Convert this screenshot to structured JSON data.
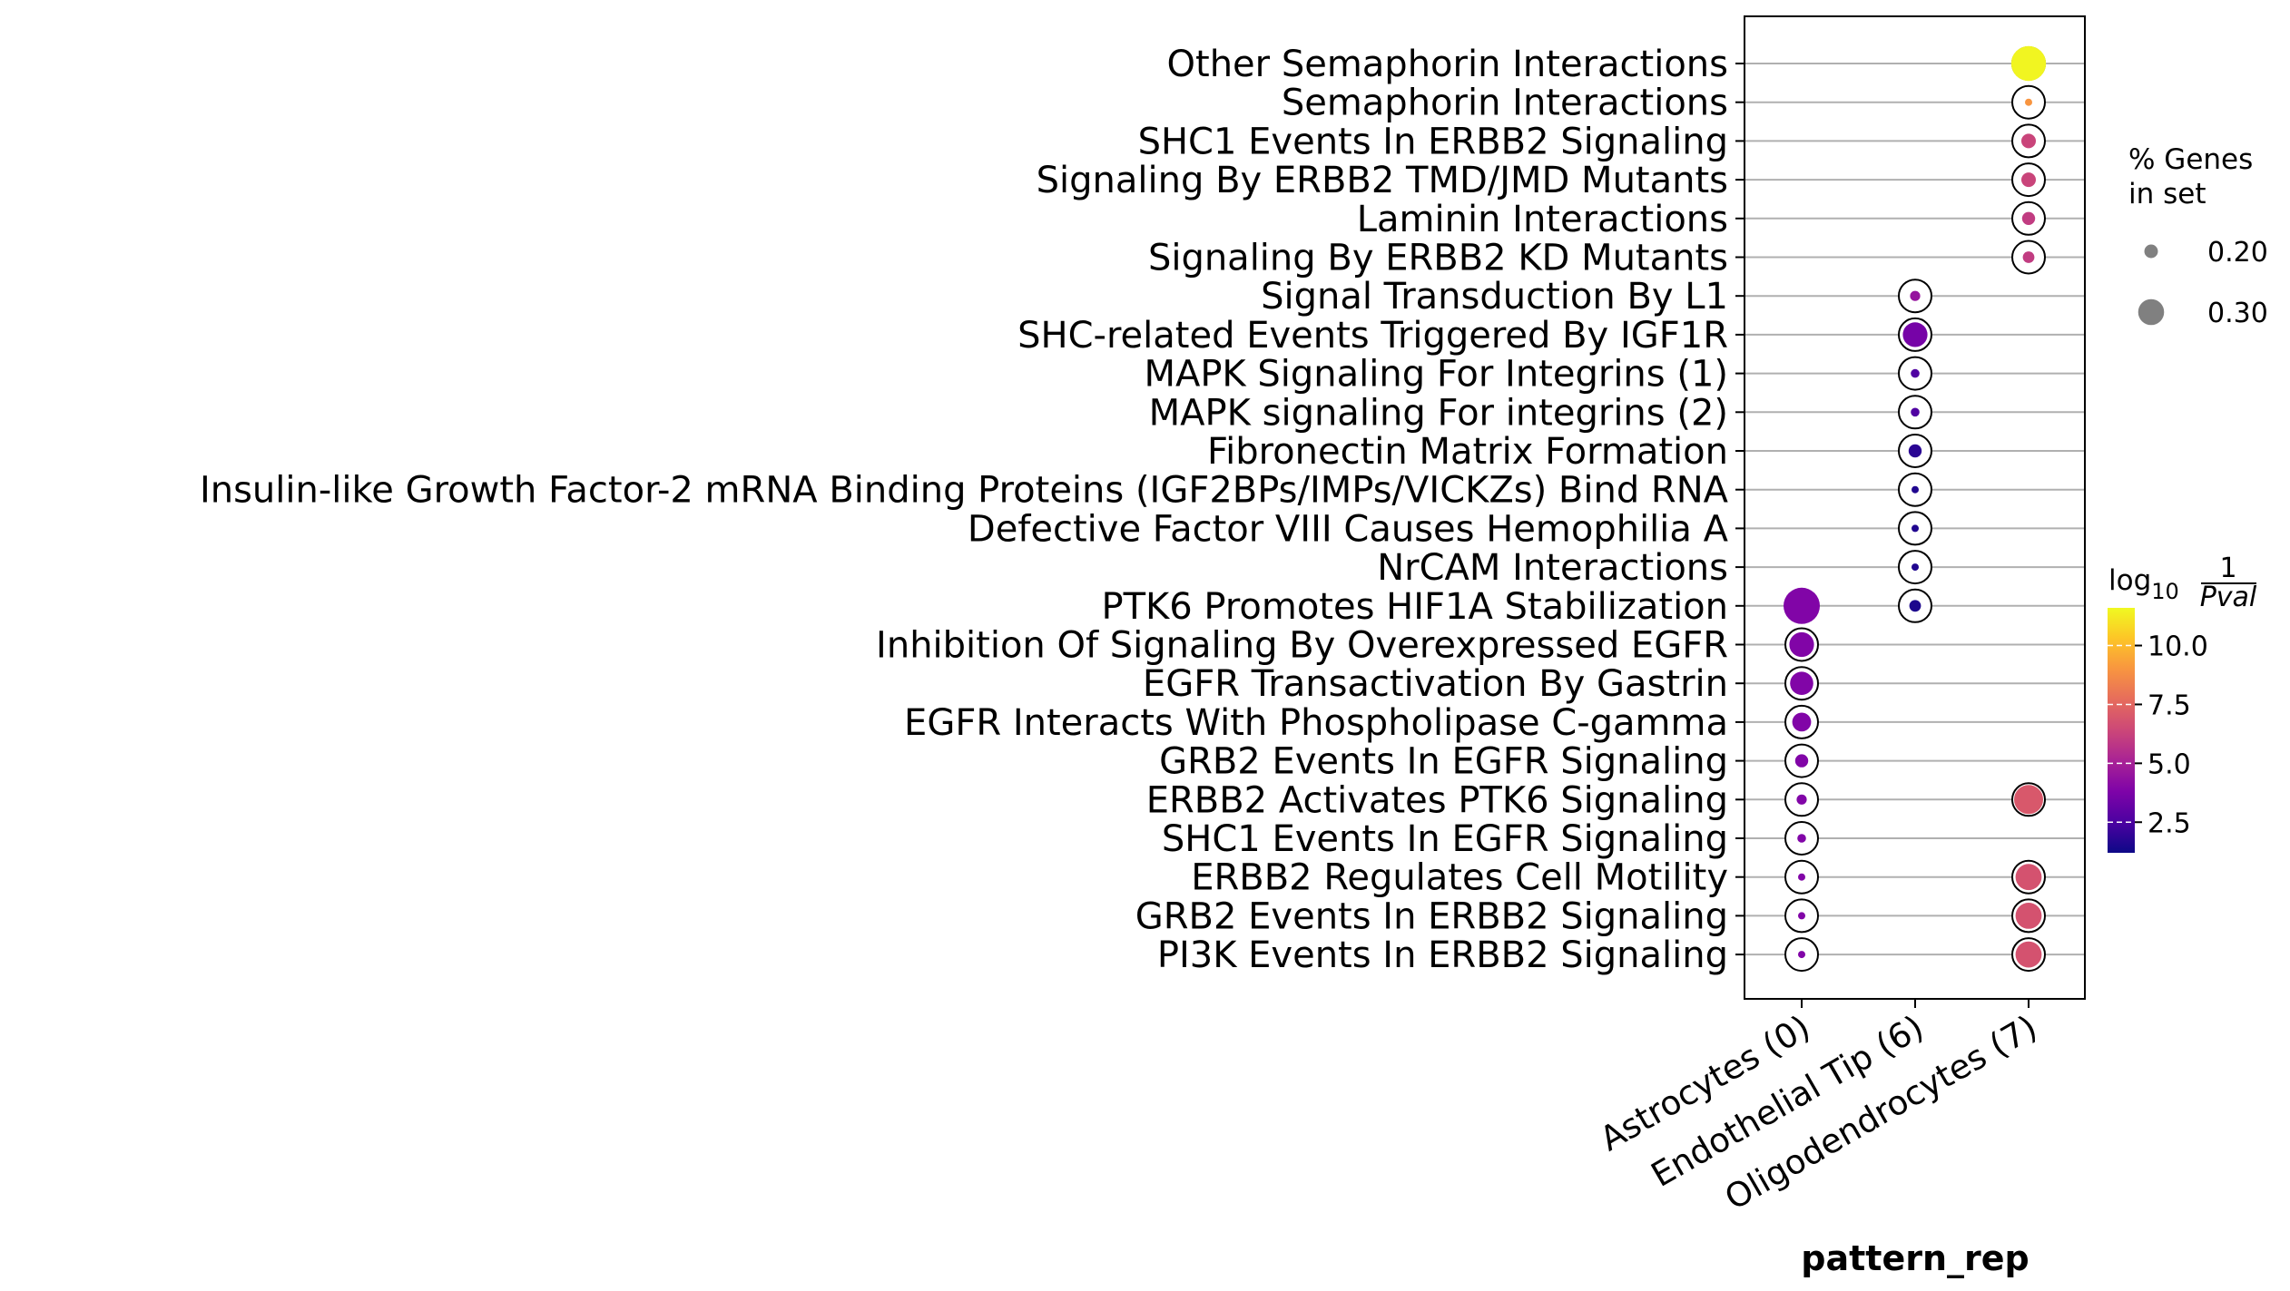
{
  "chart_data": {
    "type": "dotplot",
    "xlabel": "pattern_rep",
    "ylabel": "",
    "grid": "horizontal lines per row",
    "columns": [
      "Astrocytes (0)",
      "Endothelial Tip (6)",
      "Oligodendrocytes (7)"
    ],
    "rows": [
      "Other Semaphorin Interactions",
      "Semaphorin Interactions",
      "SHC1 Events In ERBB2 Signaling",
      "Signaling By ERBB2 TMD/JMD Mutants",
      "Laminin Interactions",
      "Signaling By ERBB2 KD Mutants",
      "Signal Transduction By L1",
      "SHC-related Events Triggered By IGF1R",
      "MAPK Signaling For Integrins (1)",
      "MAPK signaling For integrins (2)",
      "Fibronectin Matrix Formation",
      "Insulin-like Growth Factor-2 mRNA Binding Proteins (IGF2BPs/IMPs/VICKZs) Bind RNA",
      "Defective Factor VIII Causes Hemophilia A",
      "NrCAM Interactions",
      "PTK6 Promotes HIF1A Stabilization",
      "Inhibition Of Signaling By Overexpressed EGFR",
      "EGFR Transactivation By Gastrin",
      "EGFR Interacts With Phospholipase C-gamma",
      "GRB2 Events In EGFR Signaling",
      "ERBB2 Activates PTK6 Signaling",
      "SHC1 Events In EGFR Signaling",
      "ERBB2 Regulates Cell Motility",
      "GRB2 Events In ERBB2 Signaling",
      "PI3K Events In ERBB2 Signaling"
    ],
    "points": [
      {
        "row": "Other Semaphorin Interactions",
        "col": "Oligodendrocytes (7)",
        "pct_genes": 0.33,
        "neglog10p": 11.5
      },
      {
        "row": "Semaphorin Interactions",
        "col": "Oligodendrocytes (7)",
        "pct_genes": 0.14,
        "neglog10p": 9.0
      },
      {
        "row": "SHC1 Events In ERBB2 Signaling",
        "col": "Oligodendrocytes (7)",
        "pct_genes": 0.19,
        "neglog10p": 6.3
      },
      {
        "row": "Signaling By ERBB2 TMD/JMD Mutants",
        "col": "Oligodendrocytes (7)",
        "pct_genes": 0.19,
        "neglog10p": 6.3
      },
      {
        "row": "Laminin Interactions",
        "col": "Oligodendrocytes (7)",
        "pct_genes": 0.18,
        "neglog10p": 6.0
      },
      {
        "row": "Signaling By ERBB2 KD Mutants",
        "col": "Oligodendrocytes (7)",
        "pct_genes": 0.17,
        "neglog10p": 6.0
      },
      {
        "row": "Signal Transduction By L1",
        "col": "Endothelial Tip (6)",
        "pct_genes": 0.16,
        "neglog10p": 4.5
      },
      {
        "row": "SHC-related Events Triggered By IGF1R",
        "col": "Endothelial Tip (6)",
        "pct_genes": 0.26,
        "neglog10p": 3.6
      },
      {
        "row": "MAPK Signaling For Integrins (1)",
        "col": "Endothelial Tip (6)",
        "pct_genes": 0.15,
        "neglog10p": 2.6
      },
      {
        "row": "MAPK signaling For integrins (2)",
        "col": "Endothelial Tip (6)",
        "pct_genes": 0.15,
        "neglog10p": 2.6
      },
      {
        "row": "Fibronectin Matrix Formation",
        "col": "Endothelial Tip (6)",
        "pct_genes": 0.18,
        "neglog10p": 1.8
      },
      {
        "row": "Insulin-like Growth Factor-2 mRNA Binding Proteins (IGF2BPs/IMPs/VICKZs) Bind RNA",
        "col": "Endothelial Tip (6)",
        "pct_genes": 0.14,
        "neglog10p": 1.6
      },
      {
        "row": "Defective Factor VIII Causes Hemophilia A",
        "col": "Endothelial Tip (6)",
        "pct_genes": 0.14,
        "neglog10p": 1.6
      },
      {
        "row": "NrCAM Interactions",
        "col": "Endothelial Tip (6)",
        "pct_genes": 0.14,
        "neglog10p": 1.6
      },
      {
        "row": "NrCAM Interactions",
        "col": "Endothelial Tip (6)",
        "pct_genes": 0.0,
        "neglog10p": 0.0,
        "hidden": true
      },
      {
        "row": "PTK6 Promotes HIF1A Stabilization",
        "col": "Astrocytes (0)",
        "pct_genes": 0.34,
        "neglog10p": 3.9
      },
      {
        "row": "PTK6 Promotes HIF1A Stabilization",
        "col": "Endothelial Tip (6)",
        "pct_genes": 0.17,
        "neglog10p": 1.5
      },
      {
        "row": "Inhibition Of Signaling By Overexpressed EGFR",
        "col": "Astrocytes (0)",
        "pct_genes": 0.26,
        "neglog10p": 3.9
      },
      {
        "row": "EGFR Transactivation By Gastrin",
        "col": "Astrocytes (0)",
        "pct_genes": 0.25,
        "neglog10p": 3.9
      },
      {
        "row": "EGFR Interacts With Phospholipase C-gamma",
        "col": "Astrocytes (0)",
        "pct_genes": 0.22,
        "neglog10p": 3.9
      },
      {
        "row": "GRB2 Events In EGFR Signaling",
        "col": "Astrocytes (0)",
        "pct_genes": 0.18,
        "neglog10p": 3.9
      },
      {
        "row": "ERBB2 Activates PTK6 Signaling",
        "col": "Astrocytes (0)",
        "pct_genes": 0.16,
        "neglog10p": 3.9
      },
      {
        "row": "ERBB2 Activates PTK6 Signaling",
        "col": "Oligodendrocytes (7)",
        "pct_genes": 0.29,
        "neglog10p": 7.0
      },
      {
        "row": "SHC1 Events In EGFR Signaling",
        "col": "Astrocytes (0)",
        "pct_genes": 0.15,
        "neglog10p": 3.9
      },
      {
        "row": "ERBB2 Regulates Cell Motility",
        "col": "Astrocytes (0)",
        "pct_genes": 0.14,
        "neglog10p": 3.9
      },
      {
        "row": "ERBB2 Regulates Cell Motility",
        "col": "Oligodendrocytes (7)",
        "pct_genes": 0.27,
        "neglog10p": 6.8
      },
      {
        "row": "GRB2 Events In ERBB2 Signaling",
        "col": "Astrocytes (0)",
        "pct_genes": 0.14,
        "neglog10p": 3.9
      },
      {
        "row": "GRB2 Events In ERBB2 Signaling",
        "col": "Oligodendrocytes (7)",
        "pct_genes": 0.27,
        "neglog10p": 6.8
      },
      {
        "row": "PI3K Events In ERBB2 Signaling",
        "col": "Astrocytes (0)",
        "pct_genes": 0.14,
        "neglog10p": 3.9
      },
      {
        "row": "PI3K Events In ERBB2 Signaling",
        "col": "Oligodendrocytes (7)",
        "pct_genes": 0.27,
        "neglog10p": 6.8
      }
    ],
    "size_legend": {
      "title_lines": [
        "% Genes",
        "in set"
      ],
      "entries": [
        {
          "label": "0.20",
          "value": 0.2
        },
        {
          "label": "0.30",
          "value": 0.3
        }
      ]
    },
    "color_legend": {
      "title_prefix": "log",
      "title_sub": "10",
      "title_num": "1",
      "title_den": "Pval",
      "colormap": "plasma",
      "range": [
        1.2,
        11.6
      ],
      "ticks": [
        {
          "label": "2.5",
          "value": 2.5
        },
        {
          "label": "5.0",
          "value": 5.0
        },
        {
          "label": "7.5",
          "value": 7.5
        },
        {
          "label": "10.0",
          "value": 10.0
        }
      ]
    }
  }
}
